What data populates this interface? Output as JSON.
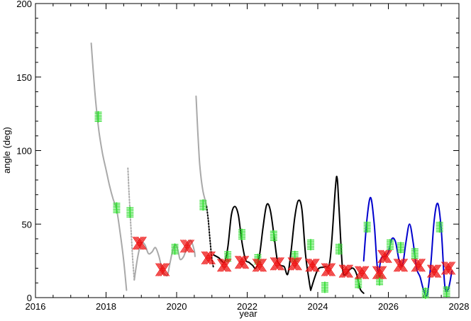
{
  "chart_data": {
    "type": "line",
    "title": "",
    "xlabel": "year",
    "ylabel": "angle (deg)",
    "xlim": [
      2016,
      2028
    ],
    "ylim": [
      0,
      200
    ],
    "x_ticks": [
      2016,
      2018,
      2020,
      2022,
      2024,
      2026,
      2028
    ],
    "y_ticks": [
      0,
      50,
      100,
      150,
      200
    ],
    "x_tick_labels": [
      "2016",
      "2018",
      "2020",
      "2022",
      "2024",
      "2026",
      "2028"
    ],
    "y_tick_labels": [
      "0",
      "50",
      "100",
      "150",
      "200"
    ],
    "grid": false,
    "legend": "none",
    "colors": {
      "past": "#a9a9a9",
      "present": "#000000",
      "future": "#0000cd",
      "green_marker": "#33dd33",
      "red_marker": "#ee1111"
    },
    "series": [
      {
        "style": "solid",
        "color_key": "past",
        "x": [
          2017.58,
          2017.65,
          2017.72,
          2017.8,
          2017.9,
          2018.0,
          2018.1,
          2018.2,
          2018.3,
          2018.4,
          2018.5,
          2018.58
        ],
        "y": [
          173,
          150,
          130,
          113,
          98,
          87,
          76,
          67,
          60,
          44,
          25,
          5
        ]
      },
      {
        "style": "dotted",
        "color_key": "past",
        "x": [
          2018.62,
          2018.65,
          2018.7,
          2018.75,
          2018.8
        ],
        "y": [
          88,
          72,
          50,
          28,
          12
        ]
      },
      {
        "style": "solid",
        "color_key": "past",
        "x": [
          2018.8,
          2018.9,
          2019.0,
          2019.1,
          2019.2,
          2019.3,
          2019.4,
          2019.5,
          2019.6,
          2019.7,
          2019.75,
          2019.8,
          2019.85,
          2019.9,
          2019.95,
          2020.0,
          2020.05,
          2020.1,
          2020.2,
          2020.3,
          2020.4,
          2020.5,
          2020.52
        ],
        "y": [
          12,
          28,
          37,
          36,
          30,
          31,
          34,
          28,
          18,
          15,
          16,
          22,
          28,
          33,
          36,
          35,
          31,
          26,
          28,
          35,
          39,
          32,
          28
        ]
      },
      {
        "style": "solid",
        "color_key": "past",
        "x": [
          2020.55,
          2020.6,
          2020.65,
          2020.7,
          2020.75,
          2020.8,
          2020.85
        ],
        "y": [
          137,
          113,
          92,
          80,
          72,
          67,
          62
        ]
      },
      {
        "style": "dotted",
        "color_key": "present",
        "x": [
          2020.85,
          2020.9,
          2020.95,
          2021.0,
          2021.05
        ],
        "y": [
          62,
          52,
          38,
          26,
          20
        ]
      },
      {
        "style": "solid",
        "color_key": "present",
        "x": [
          2021.05,
          2021.2,
          2021.35,
          2021.45,
          2021.55,
          2021.65,
          2021.75,
          2021.85,
          2021.95,
          2022.05,
          2022.15,
          2022.25,
          2022.35,
          2022.45,
          2022.55,
          2022.65,
          2022.75,
          2022.85,
          2022.95,
          2023.05,
          2023.15,
          2023.25,
          2023.35,
          2023.45,
          2023.55,
          2023.65,
          2023.75,
          2023.8
        ],
        "y": [
          29,
          27,
          24,
          34,
          56,
          62,
          56,
          38,
          26,
          24,
          22,
          20,
          29,
          48,
          63,
          60,
          44,
          26,
          22,
          21,
          16,
          33,
          55,
          66,
          60,
          30,
          12,
          5
        ]
      },
      {
        "style": "solid",
        "color_key": "present",
        "x": [
          2023.8,
          2024.0,
          2024.2,
          2024.35,
          2024.5,
          2024.55,
          2024.6,
          2024.7,
          2024.8,
          2024.9,
          2025.0,
          2025.1,
          2025.2,
          2025.3
        ],
        "y": [
          5,
          19,
          21,
          26,
          75,
          81,
          62,
          20,
          16,
          19,
          20,
          16,
          6,
          3
        ]
      },
      {
        "style": "solid",
        "color_key": "future",
        "x": [
          2025.3,
          2025.4,
          2025.5,
          2025.6,
          2025.7,
          2025.8,
          2025.9,
          2026.0,
          2026.1,
          2026.2,
          2026.3,
          2026.4,
          2026.5,
          2026.6,
          2026.7,
          2026.8,
          2026.9,
          2027.0,
          2027.1,
          2027.2,
          2027.3,
          2027.4,
          2027.5,
          2027.6,
          2027.7,
          2027.8
        ],
        "y": [
          25,
          55,
          68,
          50,
          18,
          27,
          28,
          31,
          40,
          38,
          26,
          22,
          38,
          50,
          38,
          20,
          14,
          5,
          2,
          22,
          53,
          64,
          46,
          8,
          6,
          18
        ]
      }
    ],
    "markers": {
      "green_plus": [
        {
          "x": 2017.78,
          "y": 123
        },
        {
          "x": 2018.3,
          "y": 61
        },
        {
          "x": 2018.68,
          "y": 58
        },
        {
          "x": 2019.95,
          "y": 33
        },
        {
          "x": 2020.75,
          "y": 63
        },
        {
          "x": 2021.45,
          "y": 28
        },
        {
          "x": 2021.85,
          "y": 43
        },
        {
          "x": 2022.3,
          "y": 26
        },
        {
          "x": 2022.75,
          "y": 42
        },
        {
          "x": 2023.35,
          "y": 28
        },
        {
          "x": 2023.8,
          "y": 36
        },
        {
          "x": 2024.2,
          "y": 7
        },
        {
          "x": 2024.6,
          "y": 33
        },
        {
          "x": 2025.15,
          "y": 10
        },
        {
          "x": 2025.4,
          "y": 48
        },
        {
          "x": 2025.75,
          "y": 12
        },
        {
          "x": 2026.05,
          "y": 36
        },
        {
          "x": 2026.35,
          "y": 34
        },
        {
          "x": 2026.75,
          "y": 30
        },
        {
          "x": 2027.05,
          "y": 3
        },
        {
          "x": 2027.45,
          "y": 48
        },
        {
          "x": 2027.65,
          "y": 4
        }
      ],
      "red_x": [
        {
          "x": 2018.95,
          "y": 37
        },
        {
          "x": 2019.6,
          "y": 19
        },
        {
          "x": 2020.3,
          "y": 35
        },
        {
          "x": 2020.9,
          "y": 27
        },
        {
          "x": 2021.35,
          "y": 22
        },
        {
          "x": 2021.85,
          "y": 24
        },
        {
          "x": 2022.35,
          "y": 22
        },
        {
          "x": 2022.85,
          "y": 23
        },
        {
          "x": 2023.35,
          "y": 23
        },
        {
          "x": 2023.85,
          "y": 22
        },
        {
          "x": 2024.3,
          "y": 19
        },
        {
          "x": 2024.8,
          "y": 18
        },
        {
          "x": 2025.25,
          "y": 17
        },
        {
          "x": 2025.75,
          "y": 17
        },
        {
          "x": 2025.9,
          "y": 28
        },
        {
          "x": 2026.35,
          "y": 22
        },
        {
          "x": 2026.85,
          "y": 22
        },
        {
          "x": 2027.3,
          "y": 18
        },
        {
          "x": 2027.7,
          "y": 20
        }
      ]
    }
  }
}
